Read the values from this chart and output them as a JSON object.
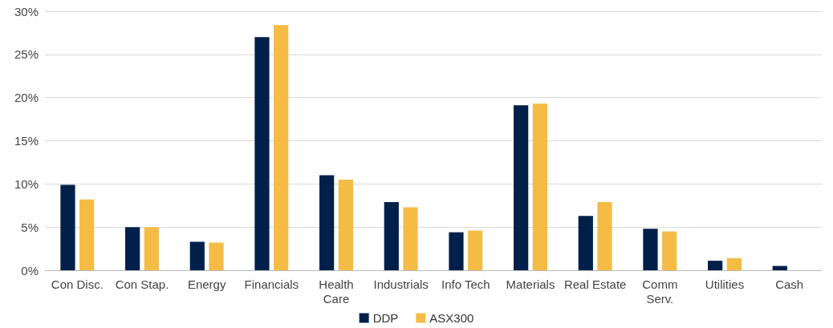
{
  "chart_data": {
    "type": "bar",
    "categories": [
      "Con Disc.",
      "Con Stap.",
      "Energy",
      "Financials",
      "Health\nCare",
      "Industrials",
      "Info Tech",
      "Materials",
      "Real Estate",
      "Comm\nServ.",
      "Utilities",
      "Cash"
    ],
    "series": [
      {
        "name": "DDP",
        "color": "#00204a",
        "values": [
          9.9,
          5.0,
          3.3,
          27.0,
          11.0,
          7.9,
          4.4,
          19.1,
          6.3,
          4.8,
          1.1,
          0.5
        ]
      },
      {
        "name": "ASX300",
        "color": "#f4bc45",
        "values": [
          8.2,
          5.0,
          3.2,
          28.4,
          10.5,
          7.3,
          4.6,
          19.3,
          7.9,
          4.5,
          1.4,
          null
        ]
      }
    ],
    "ylim": [
      0,
      30
    ],
    "yticks": [
      {
        "value": 0,
        "label": "0%"
      },
      {
        "value": 5,
        "label": "5%"
      },
      {
        "value": 10,
        "label": "10%"
      },
      {
        "value": 15,
        "label": "15%"
      },
      {
        "value": 20,
        "label": "20%"
      },
      {
        "value": 25,
        "label": "25%"
      },
      {
        "value": 30,
        "label": "30%"
      }
    ],
    "grid": "y",
    "legend": "bottom"
  }
}
